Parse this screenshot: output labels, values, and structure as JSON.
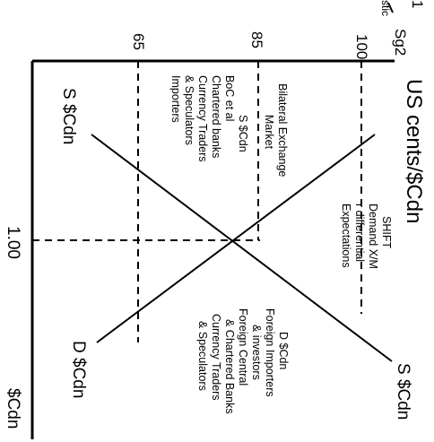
{
  "axis_title_y": "US cents/$Cdn",
  "axis_title_x": "$Cdn",
  "ticks": {
    "y": [
      "100",
      "85",
      "65"
    ],
    "x": [
      "1.00"
    ]
  },
  "corner": {
    "line1": "1",
    "line2": "stic",
    "sg2": "Sg2"
  },
  "curves": {
    "supply_top": "S $Cdn",
    "supply_bottom": "S $Cdn",
    "demand_bottom": "D $Cdn"
  },
  "market": [
    "Bilateral Exchange",
    "Market"
  ],
  "supply_text": [
    "S $Cdn",
    "BoC et al",
    "Chartered banks",
    "Currency Traders",
    "& Speculators",
    "Importers"
  ],
  "shift_text": [
    "SHIFT",
    "Demand X/M",
    "r differential",
    "Expectations"
  ],
  "demand_text": [
    "D $Cdn",
    "Foreign Importers",
    "& investors",
    "Foreign Central",
    "& Chartered Banks",
    "Currency Traders",
    "& Speculators"
  ]
}
